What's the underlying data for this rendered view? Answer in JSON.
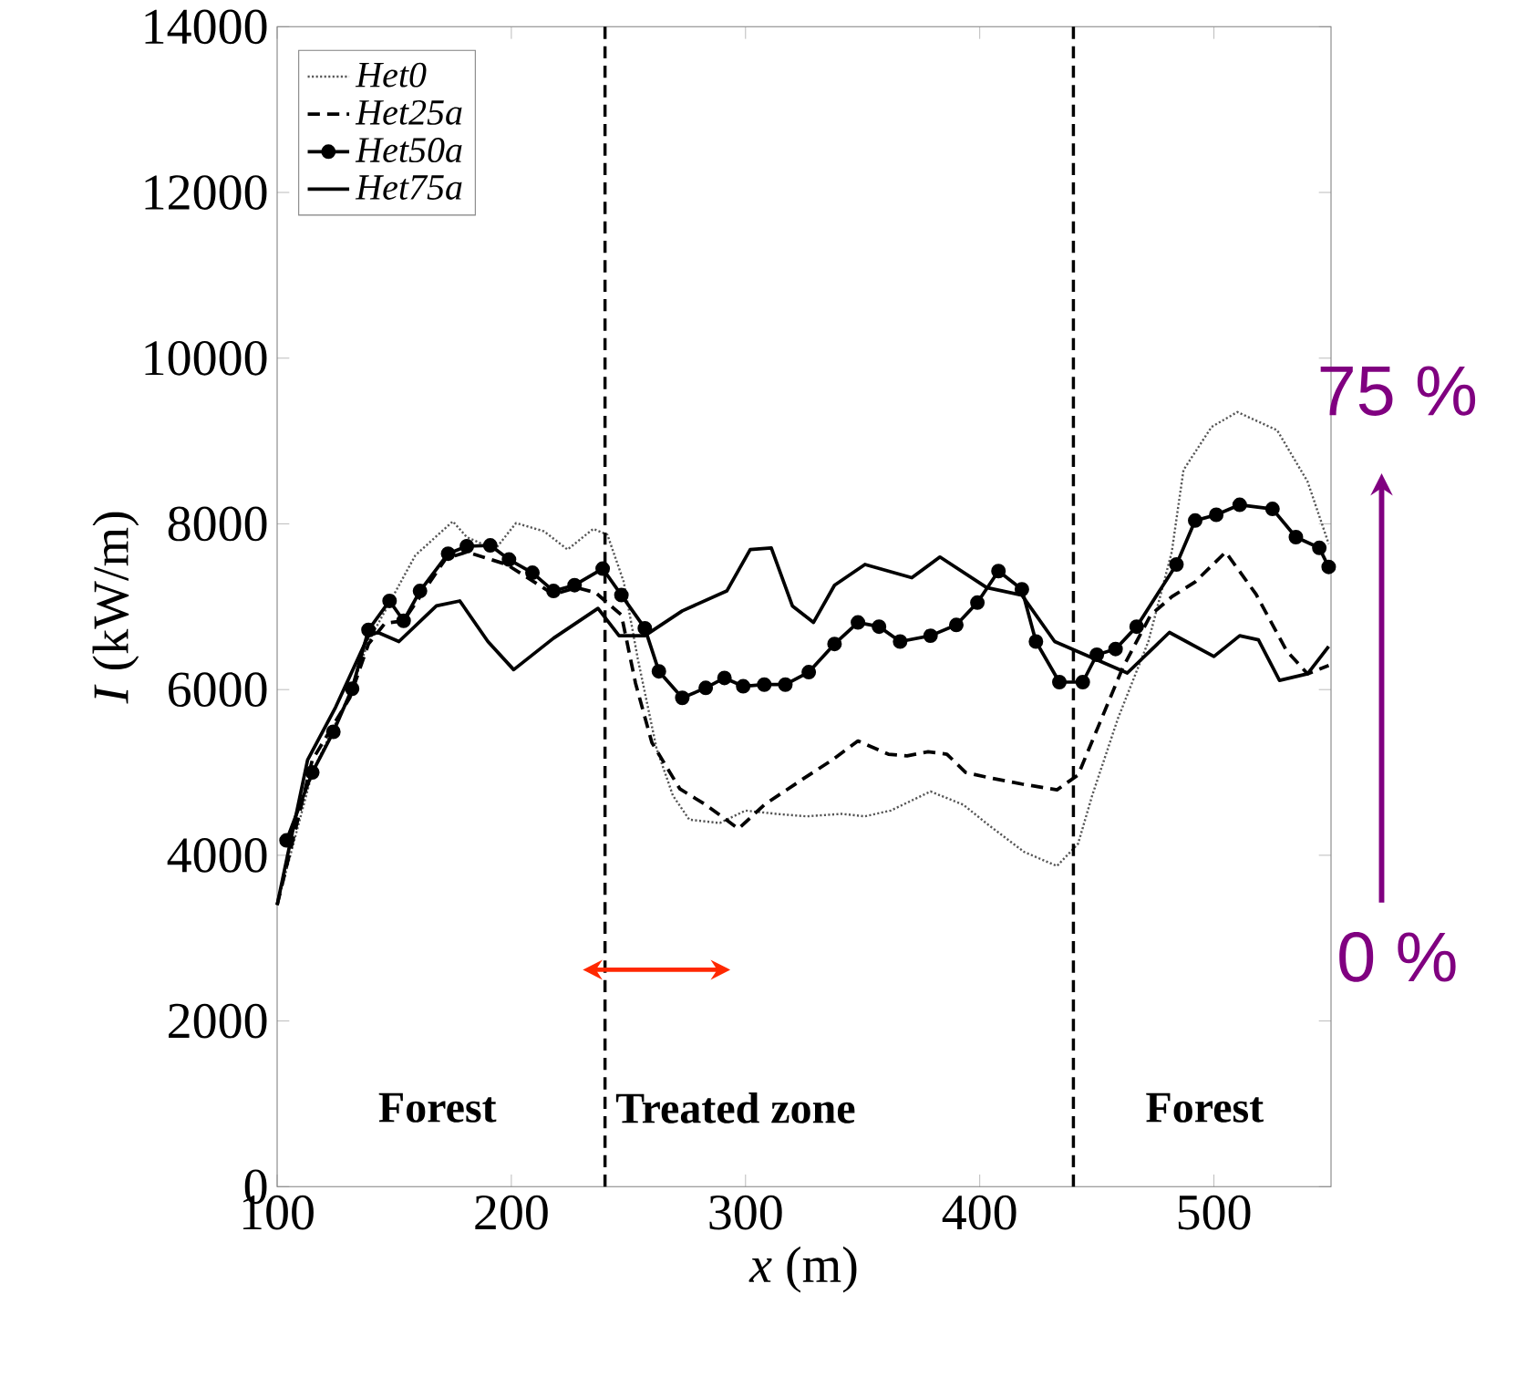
{
  "chart_data": {
    "type": "line",
    "xlabel": "*x* (m)",
    "ylabel": "*I* (kW/m)",
    "xlim": [
      100,
      550
    ],
    "xticks": [
      100,
      200,
      300,
      400,
      500
    ],
    "ylim": [
      0,
      14000
    ],
    "yticks": [
      0,
      2000,
      4000,
      6000,
      8000,
      10000,
      12000,
      14000
    ],
    "grid": false,
    "legend": "top left",
    "series": [
      {
        "name": "Het0",
        "color": "#555555",
        "line_style": "dotted",
        "marker": "none",
        "x": [
          100,
          115,
          131,
          139,
          148,
          159,
          175,
          181,
          193,
          202,
          214,
          224,
          235,
          241,
          248,
          254,
          262,
          269,
          276,
          289,
          300,
          313,
          326,
          341,
          351,
          362,
          379,
          393,
          404,
          419,
          433,
          442,
          448,
          459,
          472,
          482,
          487,
          499,
          510,
          527,
          540,
          549
        ],
        "values": [
          3400,
          5000,
          5950,
          6580,
          7050,
          7620,
          8030,
          7840,
          7690,
          8010,
          7910,
          7690,
          7940,
          7870,
          7300,
          6370,
          5290,
          4720,
          4430,
          4390,
          4540,
          4500,
          4470,
          4500,
          4470,
          4540,
          4770,
          4610,
          4360,
          4040,
          3870,
          4140,
          4720,
          5650,
          6580,
          7660,
          8650,
          9170,
          9350,
          9130,
          8510,
          7760
        ]
      },
      {
        "name": "Het25a",
        "color": "#000000",
        "line_style": "dashed",
        "marker": "none",
        "x": [
          100,
          115,
          131,
          139,
          146,
          154,
          172,
          181,
          198,
          218,
          228,
          236,
          247,
          253,
          260,
          272,
          283,
          297,
          308,
          325,
          337,
          348,
          361,
          369,
          378,
          386,
          394,
          405,
          418,
          433,
          442,
          451,
          461,
          473,
          482,
          492,
          505,
          518,
          531,
          540,
          549
        ],
        "values": [
          3400,
          5150,
          5900,
          6550,
          6800,
          6830,
          7580,
          7660,
          7510,
          7150,
          7230,
          7170,
          6900,
          6080,
          5360,
          4800,
          4610,
          4320,
          4610,
          4930,
          5150,
          5380,
          5220,
          5200,
          5250,
          5220,
          5000,
          4930,
          4860,
          4790,
          4970,
          5580,
          6260,
          6900,
          7120,
          7300,
          7660,
          7150,
          6470,
          6190,
          6290
        ]
      },
      {
        "name": "Het50a",
        "color": "#000000",
        "line_style": "solid",
        "marker": "circle",
        "x": [
          104,
          115,
          124,
          132,
          139,
          148,
          154,
          161,
          173,
          181,
          191,
          199,
          209,
          218,
          227,
          239,
          247,
          257,
          263,
          273,
          283,
          291,
          299,
          308,
          317,
          327,
          338,
          348,
          357,
          366,
          379,
          390,
          399,
          408,
          418,
          424,
          434,
          444,
          450,
          458,
          467,
          484,
          492,
          501,
          511,
          525,
          535,
          545,
          549
        ],
        "values": [
          4180,
          5000,
          5490,
          6010,
          6720,
          7070,
          6830,
          7190,
          7640,
          7730,
          7740,
          7570,
          7410,
          7190,
          7260,
          7460,
          7140,
          6740,
          6220,
          5900,
          6020,
          6140,
          6040,
          6060,
          6060,
          6210,
          6550,
          6810,
          6760,
          6580,
          6650,
          6780,
          7050,
          7430,
          7210,
          6580,
          6090,
          6090,
          6420,
          6490,
          6760,
          7510,
          8040,
          8110,
          8230,
          8180,
          7840,
          7710,
          7480
        ]
      },
      {
        "name": "Het75a",
        "color": "#000000",
        "line_style": "solid",
        "marker": "none",
        "x": [
          100,
          113,
          125,
          139,
          143,
          152,
          168,
          178,
          190,
          201,
          218,
          237,
          246,
          257,
          273,
          292,
          302,
          311,
          320,
          329,
          338,
          351,
          371,
          383,
          403,
          418,
          432,
          463,
          481,
          500,
          511,
          519,
          528,
          540,
          549
        ],
        "values": [
          3400,
          5150,
          5790,
          6650,
          6690,
          6580,
          7010,
          7070,
          6580,
          6240,
          6620,
          6980,
          6650,
          6650,
          6950,
          7190,
          7690,
          7710,
          7010,
          6810,
          7260,
          7510,
          7350,
          7600,
          7230,
          7140,
          6580,
          6200,
          6690,
          6400,
          6650,
          6600,
          6110,
          6190,
          6520
        ]
      }
    ],
    "ref_lines": [
      {
        "axis": "x",
        "value": 240,
        "color": "#000000",
        "line_style": "dashed"
      },
      {
        "axis": "x",
        "value": 440,
        "color": "#000000",
        "line_style": "dashed"
      }
    ],
    "annotations": [
      "Forest",
      "Treated zone",
      "Forest",
      "75 %",
      "0 %"
    ]
  }
}
